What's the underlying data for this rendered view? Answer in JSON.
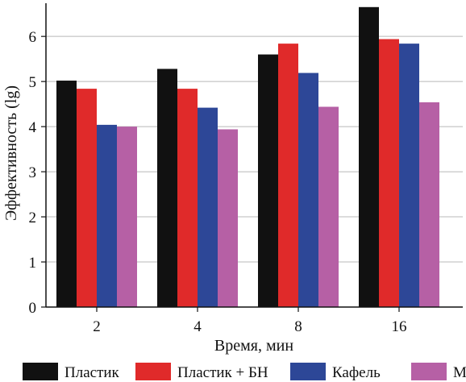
{
  "chart_data": {
    "type": "bar",
    "categories": [
      "2",
      "4",
      "8",
      "16"
    ],
    "series": [
      {
        "name": "Пластик",
        "values": [
          5.02,
          5.28,
          5.6,
          6.65
        ],
        "color": "#111111"
      },
      {
        "name": "Пластик + БН",
        "values": [
          4.84,
          4.84,
          5.84,
          5.94
        ],
        "color": "#e02a2a"
      },
      {
        "name": "Кафель",
        "values": [
          4.04,
          4.42,
          5.19,
          5.84
        ],
        "color": "#2d4797"
      },
      {
        "name": "Ме",
        "values": [
          4.0,
          3.94,
          4.44,
          4.54
        ],
        "color": "#b660a5"
      }
    ],
    "xlabel": "Время, мин",
    "ylabel": "Эффективность (lg)",
    "ylim": [
      0,
      6.7
    ],
    "yticks": [
      0,
      1,
      2,
      3,
      4,
      5,
      6
    ],
    "grid": "horizontal",
    "legend_position": "bottom"
  }
}
